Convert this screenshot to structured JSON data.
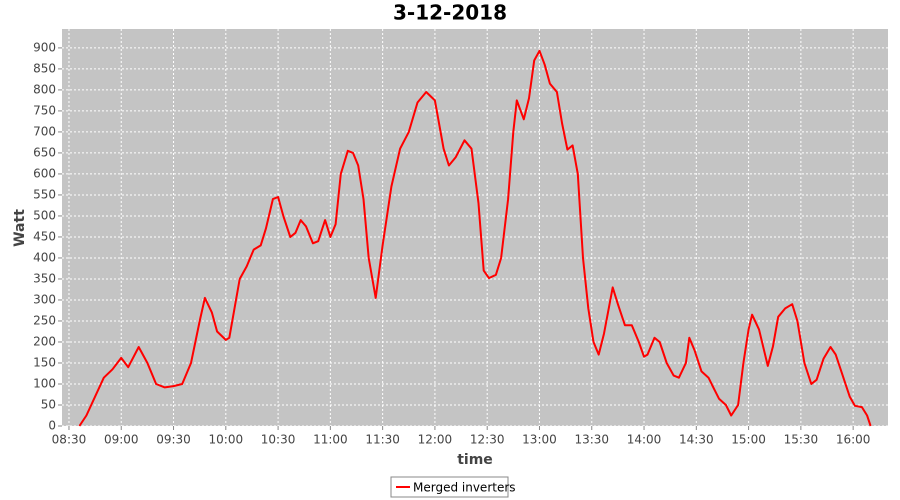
{
  "chart_data": {
    "type": "line",
    "title": "3-12-2018",
    "x_label": "time",
    "y_label": "Watt",
    "x": [
      "08:36",
      "08:40",
      "08:45",
      "08:50",
      "08:55",
      "09:00",
      "09:04",
      "09:10",
      "09:15",
      "09:20",
      "09:25",
      "09:30",
      "09:35",
      "09:40",
      "09:45",
      "09:48",
      "09:52",
      "09:55",
      "10:00",
      "10:02",
      "10:05",
      "10:08",
      "10:12",
      "10:16",
      "10:20",
      "10:23",
      "10:27",
      "10:30",
      "10:33",
      "10:37",
      "10:40",
      "10:43",
      "10:46",
      "10:50",
      "10:53",
      "10:57",
      "11:00",
      "11:03",
      "11:06",
      "11:10",
      "11:13",
      "11:16",
      "11:19",
      "11:22",
      "11:26",
      "11:30",
      "11:35",
      "11:40",
      "11:45",
      "11:50",
      "11:55",
      "12:00",
      "12:05",
      "12:08",
      "12:12",
      "12:17",
      "12:21",
      "12:25",
      "12:28",
      "12:31",
      "12:35",
      "12:38",
      "12:42",
      "12:45",
      "12:47",
      "12:51",
      "12:54",
      "12:57",
      "13:00",
      "13:03",
      "13:06",
      "13:10",
      "13:13",
      "13:16",
      "13:19",
      "13:22",
      "13:25",
      "13:28",
      "13:31",
      "13:34",
      "13:37",
      "13:42",
      "13:45",
      "13:49",
      "13:53",
      "13:57",
      "14:00",
      "14:02",
      "14:06",
      "14:09",
      "14:13",
      "14:17",
      "14:20",
      "14:24",
      "14:26",
      "14:29",
      "14:33",
      "14:37",
      "14:40",
      "14:43",
      "14:47",
      "14:50",
      "14:54",
      "14:57",
      "15:00",
      "15:02",
      "15:06",
      "15:11",
      "15:14",
      "15:17",
      "15:21",
      "15:25",
      "15:28",
      "15:32",
      "15:36",
      "15:39",
      "15:43",
      "15:47",
      "15:50",
      "15:54",
      "15:58",
      "16:01",
      "16:05",
      "16:08",
      "16:10"
    ],
    "series": [
      {
        "name": "Merged inverters",
        "color": "#ff0000",
        "values": [
          0,
          25,
          70,
          115,
          135,
          162,
          140,
          188,
          150,
          100,
          92,
          95,
          100,
          150,
          250,
          305,
          270,
          225,
          205,
          210,
          280,
          350,
          380,
          420,
          430,
          470,
          540,
          545,
          500,
          450,
          460,
          490,
          475,
          435,
          440,
          490,
          450,
          480,
          600,
          655,
          650,
          620,
          540,
          400,
          305,
          430,
          570,
          660,
          700,
          770,
          795,
          775,
          660,
          620,
          640,
          680,
          660,
          530,
          370,
          352,
          360,
          400,
          540,
          700,
          775,
          730,
          780,
          870,
          893,
          860,
          815,
          795,
          720,
          658,
          668,
          600,
          400,
          280,
          200,
          170,
          220,
          330,
          290,
          240,
          240,
          200,
          165,
          170,
          210,
          200,
          150,
          120,
          115,
          150,
          210,
          180,
          130,
          115,
          90,
          65,
          50,
          25,
          50,
          150,
          230,
          265,
          230,
          143,
          190,
          260,
          280,
          290,
          250,
          150,
          100,
          110,
          160,
          188,
          170,
          120,
          70,
          48,
          45,
          25,
          0
        ]
      }
    ],
    "xlim": [
      "08:26",
      "16:20"
    ],
    "xticks": [
      "08:30",
      "09:00",
      "09:30",
      "10:00",
      "10:30",
      "11:00",
      "11:30",
      "12:00",
      "12:30",
      "13:00",
      "13:30",
      "14:00",
      "14:30",
      "15:00",
      "15:30",
      "16:00"
    ],
    "ylim": [
      0,
      945
    ],
    "yticks": [
      0,
      50,
      100,
      150,
      200,
      250,
      300,
      350,
      400,
      450,
      500,
      550,
      600,
      650,
      700,
      750,
      800,
      850,
      900
    ],
    "grid": true,
    "legend": "bottom"
  }
}
